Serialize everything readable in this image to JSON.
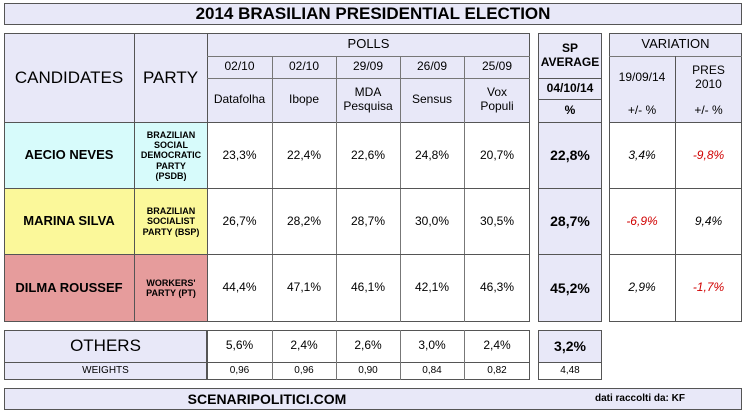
{
  "title": "2014 BRASILIAN PRESIDENTIAL ELECTION",
  "header": {
    "candidates": "CANDIDATES",
    "party": "PARTY",
    "polls": "POLLS",
    "sp_average": "SP AVERAGE",
    "sp_date": "04/10/14",
    "sp_unit": "%",
    "variation": "VARIATION",
    "var_col1": "19/09/14",
    "var_col2": "PRES 2010",
    "var_unit1": "+/- %",
    "var_unit2": "+/- %"
  },
  "polls": [
    {
      "date": "02/10",
      "name": "Datafolha"
    },
    {
      "date": "02/10",
      "name": "Ibope"
    },
    {
      "date": "29/09",
      "name": "MDA Pesquisa"
    },
    {
      "date": "26/09",
      "name": "Sensus"
    },
    {
      "date": "25/09",
      "name": "Vox Populi"
    }
  ],
  "candidates": [
    {
      "name": "AECIO NEVES",
      "party": "BRAZILIAN SOCIAL DEMOCRATIC PARTY (PSDB)",
      "values": [
        "23,3%",
        "22,4%",
        "22,6%",
        "24,8%",
        "20,7%"
      ],
      "average": "22,8%",
      "var1": "3,4%",
      "var2": "-9,8%",
      "color": "#d7fbfb"
    },
    {
      "name": "MARINA SILVA",
      "party": "BRAZILIAN SOCIALIST PARTY (BSP)",
      "values": [
        "26,7%",
        "28,2%",
        "28,7%",
        "30,0%",
        "30,5%"
      ],
      "average": "28,7%",
      "var1": "-6,9%",
      "var2": "9,4%",
      "color": "#fbf89a"
    },
    {
      "name": "DILMA ROUSSEF",
      "party": "WORKERS' PARTY (PT)",
      "values": [
        "44,4%",
        "47,1%",
        "46,1%",
        "42,1%",
        "46,3%"
      ],
      "average": "45,2%",
      "var1": "2,9%",
      "var2": "-1,7%",
      "color": "#e69c9c"
    }
  ],
  "others": {
    "label": "OTHERS",
    "values": [
      "5,6%",
      "2,4%",
      "2,6%",
      "3,0%",
      "2,4%"
    ],
    "average": "3,2%"
  },
  "weights": {
    "label": "WEIGHTS",
    "values": [
      "0,96",
      "0,96",
      "0,90",
      "0,84",
      "0,82"
    ],
    "total": "4,48"
  },
  "footer": {
    "site": "SCENARIPOLITICI.COM",
    "credit": "dati raccolti da: KF"
  },
  "colors": {
    "lavender": "#e8e8f8",
    "red": "#d00000",
    "border": "#555555"
  }
}
